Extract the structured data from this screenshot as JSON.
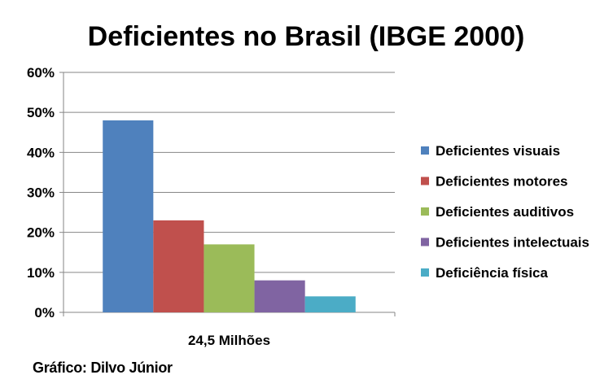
{
  "chart_data": {
    "type": "bar",
    "title": "Deficientes no Brasil (IBGE 2000)",
    "categories": [
      "24,5 Milhões"
    ],
    "series": [
      {
        "name": "Deficientes visuais",
        "values": [
          48
        ],
        "color": "#4F81BD"
      },
      {
        "name": "Deficientes motores",
        "values": [
          23
        ],
        "color": "#C0504D"
      },
      {
        "name": "Deficientes auditivos",
        "values": [
          17
        ],
        "color": "#9BBB59"
      },
      {
        "name": "Deficientes intelectuais",
        "values": [
          8
        ],
        "color": "#8064A2"
      },
      {
        "name": "Deficiência física",
        "values": [
          4
        ],
        "color": "#4BACC6"
      }
    ],
    "y_ticks": [
      "0%",
      "10%",
      "20%",
      "30%",
      "40%",
      "50%",
      "60%"
    ],
    "ylim": [
      0,
      60
    ],
    "y_unit": "%",
    "grid": true,
    "legend_position": "right"
  },
  "footer": {
    "credit": "Gráfico: Dilvo Júnior"
  },
  "colors": {
    "gridline": "#868686",
    "axis": "#868686"
  }
}
